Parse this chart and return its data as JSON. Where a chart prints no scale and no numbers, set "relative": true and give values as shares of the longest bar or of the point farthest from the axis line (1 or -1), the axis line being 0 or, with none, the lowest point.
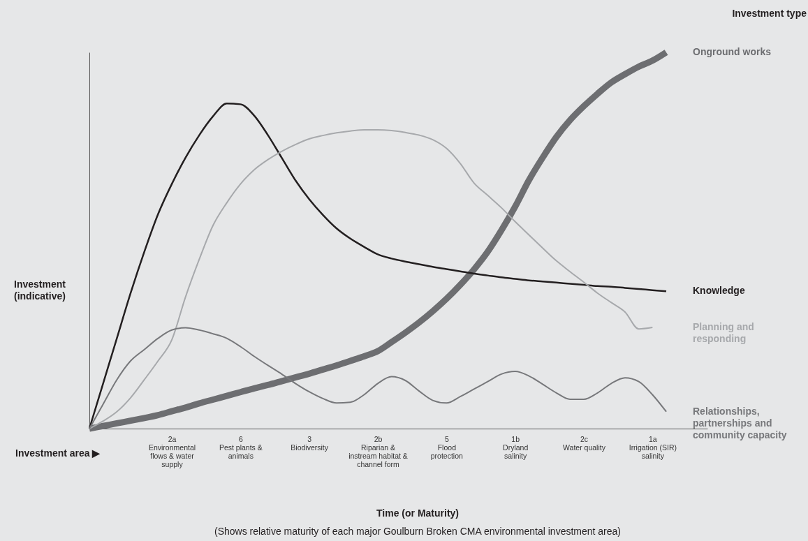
{
  "chart_data": {
    "type": "line",
    "relative": true,
    "xlabel": "Time (or Maturity)",
    "ylabel": "Investment (indicative)",
    "legend_title": "Investment type",
    "legend": false,
    "grid": false,
    "marker": "none",
    "line_style": "solid",
    "annotations": [
      "Investment area ▶",
      "(Shows relative maturity of each major Goulburn Broken CMA environmental investment area)"
    ],
    "categories": [
      null,
      null,
      null,
      null,
      null,
      null,
      "2a\nEnvironmental\nflows & water\nsupply",
      null,
      null,
      null,
      null,
      "6\nPest plants &\nanimals",
      null,
      null,
      null,
      null,
      "3\nBiodiversity",
      null,
      null,
      null,
      null,
      "2b\nRiparian &\ninstream habitat &\nchannel form",
      null,
      null,
      null,
      null,
      "5\nFlood\nprotection",
      null,
      null,
      null,
      null,
      "1b\nDryland\nsalinity",
      null,
      null,
      null,
      null,
      "2c\nWater quality",
      null,
      null,
      null,
      null,
      "1a\nIrrigation (SIR)\nsalinity",
      null,
      null,
      null,
      null
    ],
    "series": [
      {
        "name": "Onground works",
        "color": "#6d6e71",
        "values": [
          0,
          0.007,
          0.014,
          0.021,
          0.028,
          0.036,
          0.046,
          0.056,
          0.067,
          0.077,
          0.087,
          0.097,
          0.107,
          0.116,
          0.126,
          0.136,
          0.146,
          0.157,
          0.168,
          0.18,
          0.192,
          0.206,
          0.23,
          0.255,
          0.282,
          0.312,
          0.345,
          0.382,
          0.423,
          0.47,
          0.527,
          0.59,
          0.66,
          0.72,
          0.775,
          0.82,
          0.857,
          0.89,
          0.92,
          0.942,
          0.962,
          0.978,
          1,
          null,
          null,
          null
        ]
      },
      {
        "name": "Knowledge",
        "color": "#231f20",
        "values": [
          0,
          0.12,
          0.24,
          0.36,
          0.47,
          0.57,
          0.65,
          0.72,
          0.78,
          0.83,
          0.864,
          0.862,
          0.832,
          0.78,
          0.72,
          0.66,
          0.61,
          0.568,
          0.532,
          0.505,
          0.483,
          0.463,
          0.452,
          0.444,
          0.437,
          0.43,
          0.424,
          0.418,
          0.412,
          0.407,
          0.402,
          0.398,
          0.394,
          0.391,
          0.388,
          0.385,
          0.382,
          0.379,
          0.377,
          0.374,
          0.371,
          0.368,
          0.365,
          null,
          null,
          null
        ]
      },
      {
        "name": "Planning and responding",
        "color": "#a7a9ac",
        "values": [
          0,
          0.02,
          0.045,
          0.082,
          0.13,
          0.18,
          0.236,
          0.35,
          0.45,
          0.54,
          0.6,
          0.65,
          0.688,
          0.715,
          0.737,
          0.755,
          0.77,
          0.779,
          0.786,
          0.791,
          0.794,
          0.794,
          0.792,
          0.787,
          0.78,
          0.768,
          0.745,
          0.705,
          0.653,
          0.62,
          0.587,
          0.55,
          0.515,
          0.48,
          0.446,
          0.417,
          0.389,
          0.36,
          0.335,
          0.31,
          0.265,
          0.269,
          null,
          null,
          null,
          null
        ]
      },
      {
        "name": "Relationships, partnerships and community capacity",
        "color": "#77787b",
        "values": [
          0,
          0.065,
          0.13,
          0.18,
          0.21,
          0.24,
          0.262,
          0.268,
          0.262,
          0.252,
          0.24,
          0.218,
          0.192,
          0.168,
          0.145,
          0.12,
          0.098,
          0.08,
          0.068,
          0.07,
          0.09,
          0.12,
          0.138,
          0.128,
          0.1,
          0.075,
          0.068,
          0.085,
          0.105,
          0.125,
          0.145,
          0.152,
          0.14,
          0.118,
          0.095,
          0.078,
          0.078,
          0.095,
          0.12,
          0.135,
          0.125,
          0.09,
          0.045,
          null,
          null,
          null
        ]
      }
    ]
  }
}
